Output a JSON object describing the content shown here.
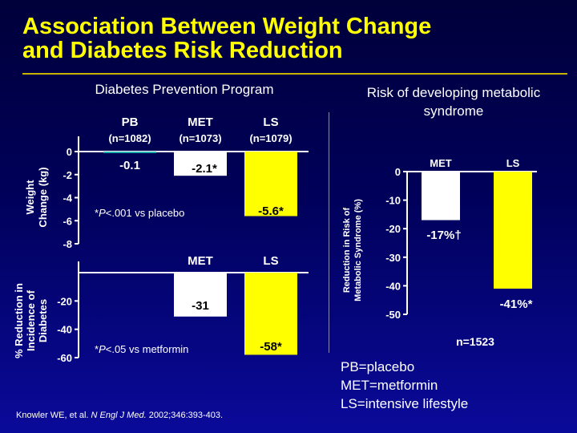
{
  "slide": {
    "title_line1": "Association Between Weight Change",
    "title_line2": "and Diabetes Risk Reduction",
    "left_subtitle": "Diabetes Prevention Program",
    "right_subtitle_line1": "Risk of developing metabolic",
    "right_subtitle_line2": "syndrome",
    "legend": [
      "PB=placebo",
      "MET=metformin",
      "LS=intensive lifestyle"
    ],
    "citation_pre": "Knowler WE, et al. ",
    "citation_journal": "N Engl J Med.",
    "citation_post": " 2002;346:393-403."
  },
  "colors": {
    "title": "#ffff00",
    "placebo": "#20b0b0",
    "metformin": "#ffffff",
    "lifestyle": "#ffff00",
    "background_top": "#00003a",
    "background_bottom": "#0a0a9a"
  },
  "chart_data": [
    {
      "type": "bar",
      "categories": [
        "PB",
        "MET",
        "LS"
      ],
      "category_sublabels": [
        "(n=1082)",
        "(n=1073)",
        "(n=1079)"
      ],
      "values": [
        -0.1,
        -2.1,
        -5.6
      ],
      "value_labels": [
        "-0.1",
        "-2.1*",
        "-5.6*"
      ],
      "ylabel_line1": "Weight",
      "ylabel_line2": "Change (kg)",
      "ylim": [
        -8,
        0
      ],
      "yticks": [
        0,
        -2,
        -4,
        -6,
        -8
      ],
      "annotation_prefix": "*",
      "annotation_italic": "P",
      "annotation_text": "<.001 vs placebo"
    },
    {
      "type": "bar",
      "categories": [
        "MET",
        "LS"
      ],
      "values": [
        -31,
        -58
      ],
      "value_labels": [
        "-31",
        "-58*"
      ],
      "ylabel_line1": "% Reduction in",
      "ylabel_line2": "Incidence of",
      "ylabel_line3": "Diabetes",
      "ylim": [
        -60,
        0
      ],
      "yticks": [
        -20,
        -40,
        -60
      ],
      "annotation_prefix": "*",
      "annotation_italic": "P",
      "annotation_text": "<.05 vs metformin"
    },
    {
      "type": "bar",
      "categories": [
        "MET",
        "LS"
      ],
      "values": [
        -17,
        -41
      ],
      "value_labels": [
        "-17%†",
        "-41%*"
      ],
      "ylabel_line1": "Reduction in Risk of",
      "ylabel_line2": "Metabolic Syndrome (%)",
      "ylim": [
        -50,
        0
      ],
      "yticks": [
        0,
        -10,
        -20,
        -30,
        -40,
        -50
      ],
      "footnote": "n=1523"
    }
  ]
}
